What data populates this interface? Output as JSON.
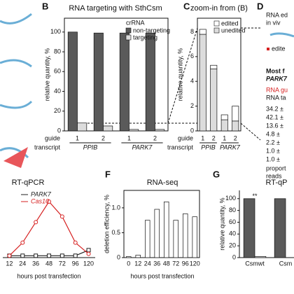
{
  "chart_data": [
    {
      "type": "bar",
      "letter": "B",
      "title": "RNA targeting with SthCsm",
      "ylabel": "relative quantity, %",
      "legend_title": "crRNA",
      "category_label": "guide",
      "group_label": "transcript",
      "groups": [
        "PPIB",
        "PARK7"
      ],
      "categories": [
        "1",
        "2",
        "1",
        "2"
      ],
      "series": [
        {
          "name": "non-targeting",
          "color": "#5a5a5a",
          "values": [
            100,
            99,
            99,
            99
          ]
        },
        {
          "name": "targeting",
          "color": "#dcdcdc",
          "values": [
            8,
            5,
            1.5,
            1.5
          ]
        }
      ],
      "ylim": [
        0,
        114
      ],
      "yticks": [
        0,
        20,
        40,
        60,
        80,
        100
      ]
    },
    {
      "type": "stacked_bar",
      "letter": "C",
      "title": "zoom-in from (B)",
      "ylabel": "relative quantity, %",
      "category_label": "guide",
      "group_label": "transcript",
      "groups": [
        "PPIB",
        "PARK7"
      ],
      "categories": [
        "1",
        "2",
        "1",
        "2"
      ],
      "series": [
        {
          "name": "unedited",
          "color": "#dcdcdc",
          "values": [
            7.8,
            5.0,
            0.9,
            0.8
          ]
        },
        {
          "name": "edited",
          "color": "#ffffff",
          "values": [
            0.4,
            0.3,
            0.4,
            1.2
          ]
        }
      ],
      "ylim": [
        0,
        9.1
      ],
      "yticks": [
        0,
        2,
        4,
        6,
        8
      ]
    },
    {
      "type": "line",
      "title": "RT-qPCR",
      "xlabel": "hours post transfection",
      "categories": [
        "12",
        "24",
        "36",
        "48",
        "72",
        "96",
        "120"
      ],
      "series": [
        {
          "name": "PARK7",
          "color": "#222222",
          "values": [
            5,
            5,
            5,
            5,
            5,
            5,
            20
          ]
        },
        {
          "name": "Cas10",
          "color": "#d62020",
          "values": [
            5,
            40,
            95,
            150,
            110,
            40,
            10
          ]
        }
      ],
      "ylim": [
        0,
        180
      ]
    },
    {
      "type": "bar",
      "letter": "F",
      "title": "RNA-seq",
      "ylabel": "deletion efficiency, %",
      "xlabel": "hours post transfection",
      "categories": [
        "0",
        "12",
        "24",
        "36",
        "48",
        "72",
        "96",
        "120"
      ],
      "series": [
        {
          "name": "deletion",
          "color": "#ffffff",
          "values": [
            0.02,
            0.05,
            0.75,
            0.97,
            1.12,
            0.75,
            0.88,
            0.82
          ]
        }
      ],
      "ylim": [
        0,
        1.35
      ],
      "yticks": [
        0,
        0.5,
        {
          "value": 1,
          "label": "1.0"
        }
      ]
    },
    {
      "type": "bar",
      "letter": "G",
      "title": "RT-qP",
      "ylabel": "relative quantity, %",
      "annotation": "**",
      "categories": [
        "Csmwt",
        "Csm"
      ],
      "series": [
        {
          "name": "dark",
          "color": "#5a5a5a",
          "values": [
            100,
            100
          ]
        },
        {
          "name": "light",
          "color": "#dcdcdc",
          "values": [
            2,
            null
          ]
        }
      ],
      "ylim": [
        0,
        114
      ],
      "yticks": [
        0,
        20,
        40,
        60,
        80,
        100
      ]
    }
  ],
  "panel_d": {
    "letter": "D",
    "lines": [
      "RNA ed",
      "in viv",
      "edite",
      "Most f",
      "PARK7",
      "RNA gu",
      "RNA ta",
      "34.2 ±",
      "42.1 ±",
      "13.6 ±",
      "4.8 ±",
      "2.2 ±",
      "1.0 ±",
      "1.0 ±",
      "proport",
      "reads"
    ]
  }
}
